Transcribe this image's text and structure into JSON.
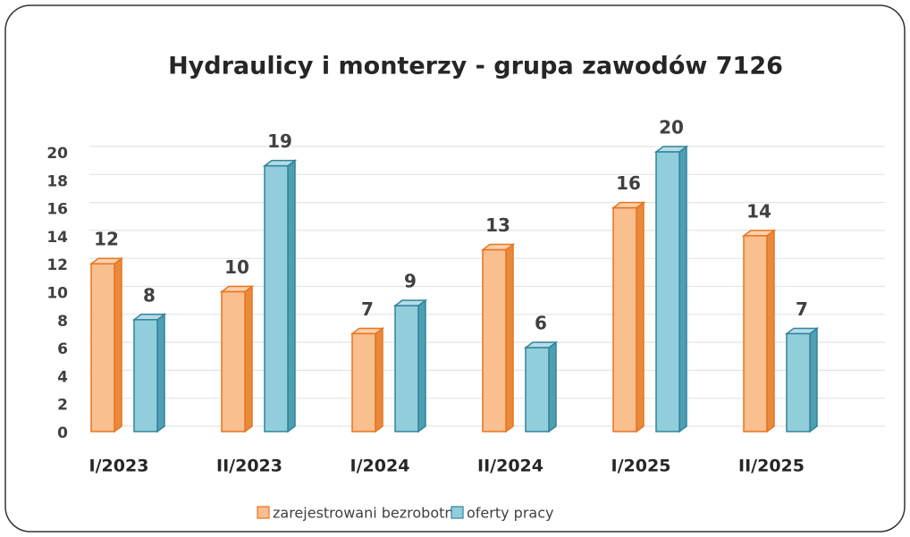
{
  "chart_data": {
    "type": "bar3d",
    "title": "Hydraulicy i monterzy  - grupa zawodów 7126",
    "categories": [
      "I/2023",
      "II/2023",
      "I/2024",
      "II/2024",
      "I/2025",
      "II/2025"
    ],
    "series": [
      {
        "name": "zarejestrowani bezrobotni",
        "color": "#f9bf8f",
        "values": [
          12,
          10,
          7,
          13,
          16,
          14
        ]
      },
      {
        "name": "oferty pracy",
        "color": "#92cddc",
        "values": [
          8,
          19,
          9,
          6,
          20,
          7
        ]
      }
    ],
    "ylim": [
      0,
      20
    ],
    "yticks": [
      0,
      2,
      4,
      6,
      8,
      10,
      12,
      14,
      16,
      18,
      20
    ],
    "grid": true,
    "legend": "bottom"
  }
}
